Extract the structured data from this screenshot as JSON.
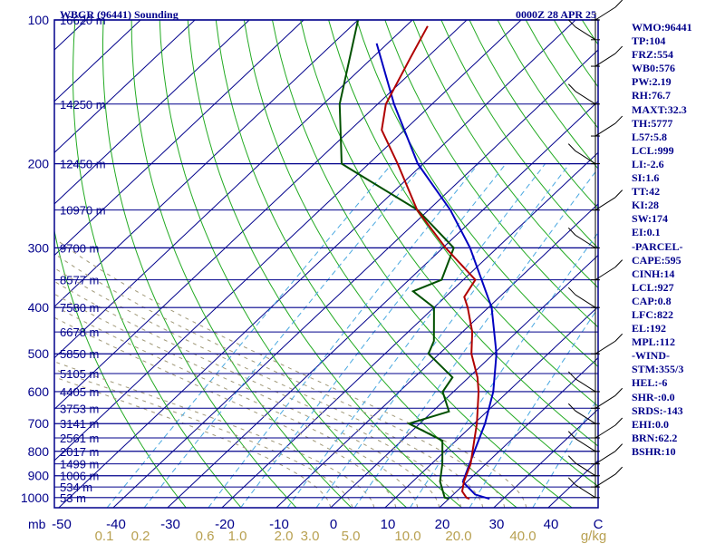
{
  "header": {
    "station": "WBGR (96441) Sounding",
    "time": "0000Z 28 APR 25"
  },
  "colors": {
    "frame": "#00008b",
    "temperature": "#b00000",
    "dewpoint": "#005000",
    "parcel": "#0000c0",
    "dry_adiabat": "#22aa22",
    "moist_adiabat": "#a09878",
    "mixing_ratio": "#4aa8e0"
  },
  "chart_data": {
    "type": "skew-T log-p sounding",
    "pressure_ticks": [
      "100",
      "200",
      "300",
      "400",
      "500",
      "600",
      "700",
      "800",
      "900",
      "1000"
    ],
    "pressure_unit": "mb",
    "temperature_ticks": [
      "-50",
      "-40",
      "-30",
      "-20",
      "-10",
      "0",
      "10",
      "20",
      "30",
      "40",
      "C"
    ],
    "mixing_ratio_ticks": [
      "0.1",
      "0.2",
      "0.6",
      "1.0",
      "2.0",
      "3.0",
      "5.0",
      "10.0",
      "20.0",
      "40.0",
      "g/kg"
    ],
    "height_labels": [
      {
        "p": 100,
        "label": "16620 m"
      },
      {
        "p": 150,
        "label": "14250 m"
      },
      {
        "p": 200,
        "label": "12450 m"
      },
      {
        "p": 250,
        "label": "10970 m"
      },
      {
        "p": 300,
        "label": "9700 m"
      },
      {
        "p": 350,
        "label": "8577 m"
      },
      {
        "p": 400,
        "label": "7580 m"
      },
      {
        "p": 450,
        "label": "6678 m"
      },
      {
        "p": 500,
        "label": "5850 m"
      },
      {
        "p": 550,
        "label": "5105 m"
      },
      {
        "p": 600,
        "label": "4405 m"
      },
      {
        "p": 650,
        "label": "3753 m"
      },
      {
        "p": 700,
        "label": "3141 m"
      },
      {
        "p": 750,
        "label": "2561 m"
      },
      {
        "p": 800,
        "label": "2017 m"
      },
      {
        "p": 850,
        "label": "1499 m"
      },
      {
        "p": 900,
        "label": "1006 m"
      },
      {
        "p": 950,
        "label": "534 m"
      },
      {
        "p": 1000,
        "label": "53 m"
      }
    ],
    "temperature_profile": [
      {
        "p": 1006,
        "t": 23.8
      },
      {
        "p": 1000,
        "t": 23.0
      },
      {
        "p": 970,
        "t": 21.0
      },
      {
        "p": 925,
        "t": 19.4
      },
      {
        "p": 850,
        "t": 17.2
      },
      {
        "p": 700,
        "t": 10.5
      },
      {
        "p": 600,
        "t": 4.6
      },
      {
        "p": 560,
        "t": 1.6
      },
      {
        "p": 500,
        "t": -4.1
      },
      {
        "p": 450,
        "t": -8.2
      },
      {
        "p": 400,
        "t": -13.8
      },
      {
        "p": 380,
        "t": -16.5
      },
      {
        "p": 350,
        "t": -17.8
      },
      {
        "p": 300,
        "t": -29.5
      },
      {
        "p": 250,
        "t": -42.1
      },
      {
        "p": 200,
        "t": -54.7
      },
      {
        "p": 170,
        "t": -64.2
      },
      {
        "p": 150,
        "t": -68.5
      },
      {
        "p": 120,
        "t": -73.0
      },
      {
        "p": 103,
        "t": -76.0
      }
    ],
    "dewpoint_profile": [
      {
        "p": 1006,
        "t": 20.0
      },
      {
        "p": 1000,
        "t": 19.0
      },
      {
        "p": 925,
        "t": 15.0
      },
      {
        "p": 850,
        "t": 12.0
      },
      {
        "p": 760,
        "t": 7.5
      },
      {
        "p": 700,
        "t": -2.0
      },
      {
        "p": 660,
        "t": 3.0
      },
      {
        "p": 600,
        "t": -2.0
      },
      {
        "p": 560,
        "t": -3.0
      },
      {
        "p": 500,
        "t": -12.0
      },
      {
        "p": 470,
        "t": -13.5
      },
      {
        "p": 400,
        "t": -20.0
      },
      {
        "p": 370,
        "t": -27.0
      },
      {
        "p": 350,
        "t": -24.0
      },
      {
        "p": 300,
        "t": -28.0
      },
      {
        "p": 250,
        "t": -42.0
      },
      {
        "p": 200,
        "t": -65.0
      },
      {
        "p": 150,
        "t": -77.0
      },
      {
        "p": 100,
        "t": -90.0
      }
    ],
    "parcel_profile": [
      {
        "p": 1006,
        "t": 27.5
      },
      {
        "p": 985,
        "t": 24.0
      },
      {
        "p": 927,
        "t": 19.3
      },
      {
        "p": 850,
        "t": 17.0
      },
      {
        "p": 700,
        "t": 12.0
      },
      {
        "p": 600,
        "t": 7.3
      },
      {
        "p": 500,
        "t": 0.5
      },
      {
        "p": 400,
        "t": -9.4
      },
      {
        "p": 300,
        "t": -25.0
      },
      {
        "p": 250,
        "t": -36.0
      },
      {
        "p": 200,
        "t": -51.0
      },
      {
        "p": 150,
        "t": -67.0
      },
      {
        "p": 112,
        "t": -82.0
      }
    ],
    "dry_adiabats_theta_C": [
      -30,
      -20,
      -10,
      0,
      10,
      20,
      30,
      40,
      50,
      60,
      70,
      80,
      90,
      100,
      110,
      120,
      130,
      140,
      150,
      160,
      170,
      180
    ],
    "moist_adiabats_theta_C": [
      0,
      4,
      8,
      12,
      16,
      20,
      24,
      28,
      32,
      36
    ],
    "mixing_ratio_lines_gkg": [
      0.1,
      0.2,
      0.6,
      1.0,
      2.0,
      3.0,
      5.0,
      10.0,
      20.0,
      40.0
    ]
  },
  "indices": [
    "WMO:96441",
    "TP:104",
    "FRZ:554",
    "WB0:576",
    "PW:2.19",
    "RH:76.7",
    "MAXT:32.3",
    "TH:5777",
    "L57:5.8",
    "LCL:999",
    "LI:-2.6",
    "SI:1.6",
    "TT:42",
    "KI:28",
    "SW:174",
    "EI:0.1",
    "-PARCEL-",
    "CAPE:595",
    "CINH:14",
    "LCL:927",
    "CAP:0.8",
    "LFC:822",
    "EL:192",
    "MPL:112",
    "-WIND-",
    "STM:355/3",
    "HEL:-6",
    "SHR-:0.0",
    "SRDS:-143",
    "EHI:0.0",
    "BRN:62.2",
    "BSHR:10"
  ]
}
